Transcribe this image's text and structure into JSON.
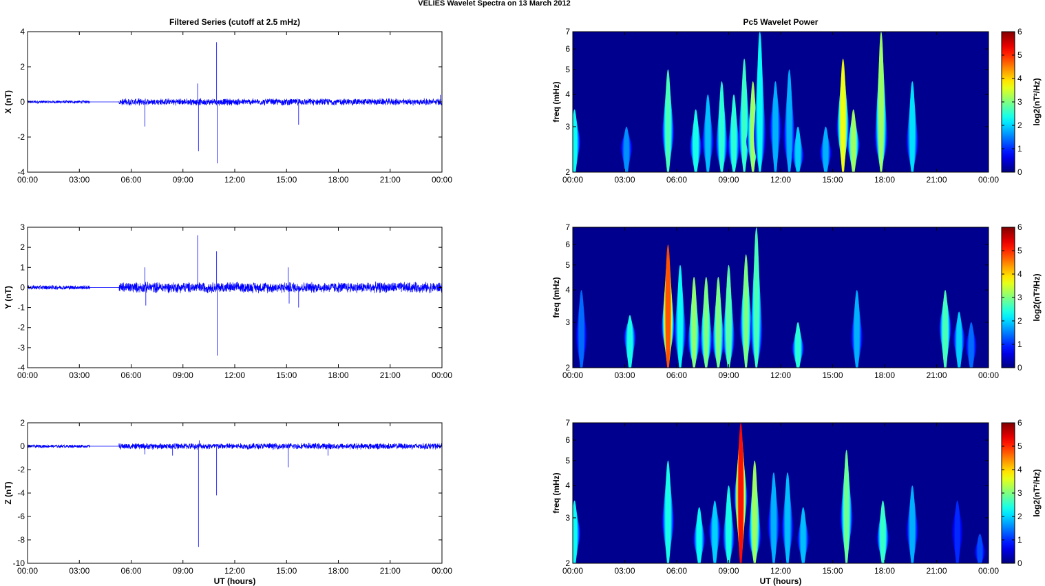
{
  "figure": {
    "suptitle": "VELIES Wavelet Spectra on 13 March      2012"
  },
  "colors": {
    "trace": "#0000ff",
    "axes": "#000000",
    "background": "#ffffff",
    "spectrogram_base": "#00008f",
    "colormap": "jet"
  },
  "chart_data": [
    {
      "type": "line",
      "panel": "filtered-x",
      "title": "Filtered Series (cutoff at 2.5 mHz)",
      "xlabel": "",
      "ylabel": "X (nT)",
      "xlim": [
        0,
        24
      ],
      "ylim": [
        -4,
        4
      ],
      "yticks": [
        -4,
        -2,
        0,
        2,
        4
      ],
      "xticks": [
        0,
        3,
        6,
        9,
        12,
        15,
        18,
        21,
        24
      ],
      "xticklabels": [
        "00:00",
        "03:00",
        "06:00",
        "09:00",
        "12:00",
        "15:00",
        "18:00",
        "21:00",
        "00:00"
      ],
      "noise": {
        "quiet_start": 0,
        "quiet_end": 3.6,
        "quiet_amp": 0.08,
        "gap_end": 5.3,
        "active_amp": 0.18
      },
      "spikes": [
        [
          6.8,
          -1.4
        ],
        [
          9.85,
          1.05
        ],
        [
          9.9,
          -2.8
        ],
        [
          10.95,
          3.4
        ],
        [
          10.98,
          -3.5
        ],
        [
          15.7,
          -1.3
        ],
        [
          23.9,
          0.4
        ]
      ]
    },
    {
      "type": "line",
      "panel": "filtered-y",
      "title": "",
      "xlabel": "",
      "ylabel": "Y (nT)",
      "xlim": [
        0,
        24
      ],
      "ylim": [
        -4,
        3
      ],
      "yticks": [
        -4,
        -3,
        -2,
        -1,
        0,
        1,
        2,
        3
      ],
      "xticks": [
        0,
        3,
        6,
        9,
        12,
        15,
        18,
        21,
        24
      ],
      "xticklabels": [
        "00:00",
        "03:00",
        "06:00",
        "09:00",
        "12:00",
        "15:00",
        "18:00",
        "21:00",
        "00:00"
      ],
      "noise": {
        "quiet_start": 0,
        "quiet_end": 3.6,
        "quiet_amp": 0.1,
        "gap_end": 5.3,
        "active_amp": 0.25
      },
      "spikes": [
        [
          6.8,
          1.0
        ],
        [
          6.85,
          -0.9
        ],
        [
          9.85,
          2.6
        ],
        [
          10.95,
          1.8
        ],
        [
          10.98,
          -3.4
        ],
        [
          15.1,
          1.0
        ],
        [
          15.15,
          -0.8
        ],
        [
          15.7,
          -1.0
        ]
      ]
    },
    {
      "type": "line",
      "panel": "filtered-z",
      "title": "",
      "xlabel": "UT (hours)",
      "ylabel": "Z (nT)",
      "xlim": [
        0,
        24
      ],
      "ylim": [
        -10,
        2
      ],
      "yticks": [
        -10,
        -8,
        -6,
        -4,
        -2,
        0,
        2
      ],
      "xticks": [
        0,
        3,
        6,
        9,
        12,
        15,
        18,
        21,
        24
      ],
      "xticklabels": [
        "00:00",
        "03:00",
        "06:00",
        "09:00",
        "12:00",
        "15:00",
        "18:00",
        "21:00",
        "00:00"
      ],
      "noise": {
        "quiet_start": 0,
        "quiet_end": 3.6,
        "quiet_amp": 0.12,
        "gap_end": 5.3,
        "active_amp": 0.25
      },
      "spikes": [
        [
          9.9,
          -8.6
        ],
        [
          9.95,
          0.5
        ],
        [
          10.95,
          -4.2
        ],
        [
          15.1,
          -1.8
        ],
        [
          6.8,
          -0.7
        ],
        [
          8.4,
          -0.8
        ],
        [
          17.4,
          -0.8
        ]
      ]
    },
    {
      "type": "heatmap",
      "panel": "wavelet-x",
      "title": "Pc5 Wavelet Power",
      "xlabel": "",
      "ylabel": "freq (mHz)",
      "xlim": [
        0,
        24
      ],
      "ylim": [
        2,
        7
      ],
      "yscale": "log",
      "yticks": [
        2,
        3,
        4,
        5,
        6,
        7
      ],
      "xticks": [
        0,
        3,
        6,
        9,
        12,
        15,
        18,
        21,
        24
      ],
      "xticklabels": [
        "00:00",
        "03:00",
        "06:00",
        "09:00",
        "12:00",
        "15:00",
        "18:00",
        "21:00",
        "00:00"
      ],
      "colorbar": {
        "label": "log2(nT²/Hz)",
        "clim": [
          0,
          6
        ],
        "ticks": [
          0,
          1,
          2,
          3,
          4,
          5,
          6
        ]
      },
      "bursts": [
        {
          "t": 0.1,
          "f": 2.7,
          "p": 2.3,
          "fhi": 3.5
        },
        {
          "t": 3.1,
          "f": 2.6,
          "p": 1.6,
          "fhi": 3.0
        },
        {
          "t": 5.5,
          "f": 2.8,
          "p": 2.7,
          "fhi": 5.0
        },
        {
          "t": 7.1,
          "f": 2.5,
          "p": 2.4,
          "fhi": 3.5
        },
        {
          "t": 7.8,
          "f": 2.6,
          "p": 1.9,
          "fhi": 4.0
        },
        {
          "t": 8.6,
          "f": 2.4,
          "p": 2.5,
          "fhi": 4.5
        },
        {
          "t": 9.3,
          "f": 2.4,
          "p": 2.5,
          "fhi": 4.0
        },
        {
          "t": 9.9,
          "f": 2.6,
          "p": 2.6,
          "fhi": 5.5
        },
        {
          "t": 10.4,
          "f": 2.6,
          "p": 3.2,
          "fhi": 4.5
        },
        {
          "t": 10.8,
          "f": 2.4,
          "p": 2.3,
          "fhi": 7.0
        },
        {
          "t": 11.7,
          "f": 3.1,
          "p": 1.8,
          "fhi": 4.5
        },
        {
          "t": 12.5,
          "f": 2.6,
          "p": 1.8,
          "fhi": 5.0
        },
        {
          "t": 13.0,
          "f": 2.3,
          "p": 2.0,
          "fhi": 3.0
        },
        {
          "t": 14.6,
          "f": 2.4,
          "p": 1.8,
          "fhi": 3.0
        },
        {
          "t": 15.6,
          "f": 3.0,
          "p": 3.7,
          "fhi": 5.5
        },
        {
          "t": 16.2,
          "f": 2.6,
          "p": 3.2,
          "fhi": 3.5
        },
        {
          "t": 17.8,
          "f": 2.5,
          "p": 3.2,
          "fhi": 7.0
        },
        {
          "t": 19.6,
          "f": 2.5,
          "p": 2.1,
          "fhi": 4.5
        }
      ]
    },
    {
      "type": "heatmap",
      "panel": "wavelet-y",
      "title": "",
      "xlabel": "",
      "ylabel": "freq (mHz)",
      "xlim": [
        0,
        24
      ],
      "ylim": [
        2,
        7
      ],
      "yscale": "log",
      "yticks": [
        2,
        3,
        4,
        5,
        6,
        7
      ],
      "xticks": [
        0,
        3,
        6,
        9,
        12,
        15,
        18,
        21,
        24
      ],
      "xticklabels": [
        "00:00",
        "03:00",
        "06:00",
        "09:00",
        "12:00",
        "15:00",
        "18:00",
        "21:00",
        "00:00"
      ],
      "colorbar": {
        "label": "log2(nT²/Hz)",
        "clim": [
          0,
          6
        ],
        "ticks": [
          0,
          1,
          2,
          3,
          4,
          5,
          6
        ]
      },
      "bursts": [
        {
          "t": 0.5,
          "f": 2.6,
          "p": 1.4,
          "fhi": 4.0
        },
        {
          "t": 3.3,
          "f": 2.8,
          "p": 2.4,
          "fhi": 3.2
        },
        {
          "t": 5.5,
          "f": 2.8,
          "p": 4.8,
          "fhi": 6.0
        },
        {
          "t": 6.2,
          "f": 2.6,
          "p": 2.3,
          "fhi": 5.0
        },
        {
          "t": 7.0,
          "f": 2.4,
          "p": 3.1,
          "fhi": 4.5
        },
        {
          "t": 7.7,
          "f": 2.4,
          "p": 3.0,
          "fhi": 4.5
        },
        {
          "t": 8.4,
          "f": 2.4,
          "p": 3.0,
          "fhi": 4.5
        },
        {
          "t": 9.0,
          "f": 2.4,
          "p": 2.8,
          "fhi": 5.0
        },
        {
          "t": 10.0,
          "f": 2.8,
          "p": 3.0,
          "fhi": 5.5
        },
        {
          "t": 10.6,
          "f": 2.4,
          "p": 2.7,
          "fhi": 7.0
        },
        {
          "t": 13.0,
          "f": 2.4,
          "p": 2.5,
          "fhi": 3.0
        },
        {
          "t": 16.4,
          "f": 2.6,
          "p": 1.8,
          "fhi": 4.0
        },
        {
          "t": 21.5,
          "f": 3.0,
          "p": 2.7,
          "fhi": 4.0
        },
        {
          "t": 22.3,
          "f": 2.7,
          "p": 2.0,
          "fhi": 3.3
        },
        {
          "t": 23.0,
          "f": 2.5,
          "p": 1.4,
          "fhi": 3.0
        }
      ]
    },
    {
      "type": "heatmap",
      "panel": "wavelet-z",
      "title": "",
      "xlabel": "UT (hours)",
      "ylabel": "freq (mHz)",
      "xlim": [
        0,
        24
      ],
      "ylim": [
        2,
        7
      ],
      "yscale": "log",
      "yticks": [
        2,
        3,
        4,
        5,
        6,
        7
      ],
      "xticks": [
        0,
        3,
        6,
        9,
        12,
        15,
        18,
        21,
        24
      ],
      "xticklabels": [
        "00:00",
        "03:00",
        "06:00",
        "09:00",
        "12:00",
        "15:00",
        "18:00",
        "21:00",
        "00:00"
      ],
      "colorbar": {
        "label": "log2(nT²/Hz)",
        "clim": [
          0,
          6
        ],
        "ticks": [
          0,
          1,
          2,
          3,
          4,
          5,
          6
        ]
      },
      "bursts": [
        {
          "t": 0.1,
          "f": 2.7,
          "p": 2.3,
          "fhi": 3.5
        },
        {
          "t": 5.5,
          "f": 2.9,
          "p": 2.4,
          "fhi": 5.0
        },
        {
          "t": 7.3,
          "f": 2.5,
          "p": 2.3,
          "fhi": 3.3
        },
        {
          "t": 8.2,
          "f": 2.8,
          "p": 2.0,
          "fhi": 3.5
        },
        {
          "t": 9.0,
          "f": 2.4,
          "p": 2.4,
          "fhi": 4.0
        },
        {
          "t": 9.7,
          "f": 3.8,
          "p": 5.2,
          "fhi": 7.0
        },
        {
          "t": 10.5,
          "f": 2.4,
          "p": 3.2,
          "fhi": 5.0
        },
        {
          "t": 11.6,
          "f": 2.8,
          "p": 1.8,
          "fhi": 4.5
        },
        {
          "t": 12.4,
          "f": 2.7,
          "p": 1.9,
          "fhi": 4.5
        },
        {
          "t": 13.3,
          "f": 2.5,
          "p": 1.9,
          "fhi": 3.3
        },
        {
          "t": 15.8,
          "f": 3.0,
          "p": 2.9,
          "fhi": 5.5
        },
        {
          "t": 17.9,
          "f": 2.5,
          "p": 2.6,
          "fhi": 3.5
        },
        {
          "t": 19.6,
          "f": 2.7,
          "p": 1.8,
          "fhi": 4.0
        },
        {
          "t": 22.2,
          "f": 2.8,
          "p": 1.0,
          "fhi": 3.5
        },
        {
          "t": 23.5,
          "f": 2.2,
          "p": 1.2,
          "fhi": 2.6
        }
      ]
    }
  ]
}
